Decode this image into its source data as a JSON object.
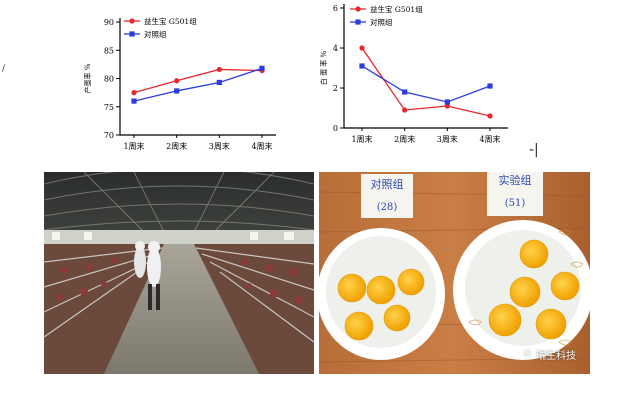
{
  "chart_data": [
    {
      "type": "line",
      "categories": [
        "1周末",
        "2周末",
        "3周末",
        "4周末"
      ],
      "ylabel": "产蛋率 %",
      "ylim": [
        70,
        90
      ],
      "yticks": [
        70,
        75,
        80,
        85,
        90
      ],
      "legend_position": "top-left",
      "series": [
        {
          "name": "益生宝 G501组",
          "color": "#e8262d",
          "marker": "circle",
          "values": [
            77.5,
            79.6,
            81.6,
            81.4
          ]
        },
        {
          "name": "对照组",
          "color": "#2b3de0",
          "marker": "square",
          "values": [
            76.0,
            77.8,
            79.3,
            81.8
          ]
        }
      ]
    },
    {
      "type": "line",
      "categories": [
        "1周末",
        "2周末",
        "3周末",
        "4周末"
      ],
      "ylabel": "白 蛋 率 %",
      "ylim": [
        0,
        6
      ],
      "yticks": [
        0,
        2,
        4,
        6
      ],
      "legend_position": "top-left",
      "series": [
        {
          "name": "益生宝 G501组",
          "color": "#e8262d",
          "marker": "circle",
          "values": [
            4.0,
            0.9,
            1.1,
            0.6
          ]
        },
        {
          "name": "对照组",
          "color": "#2b3de0",
          "marker": "square",
          "values": [
            3.1,
            1.8,
            1.3,
            2.1
          ]
        }
      ]
    }
  ],
  "photos": {
    "egg_label_left": "对照组",
    "egg_label_left_count": "(28)",
    "egg_label_right": "实验组",
    "egg_label_right_count": "(51)",
    "watermark": "瑞生科技"
  },
  "colors": {
    "series_red": "#e8262d",
    "series_blue": "#2b3de0"
  }
}
